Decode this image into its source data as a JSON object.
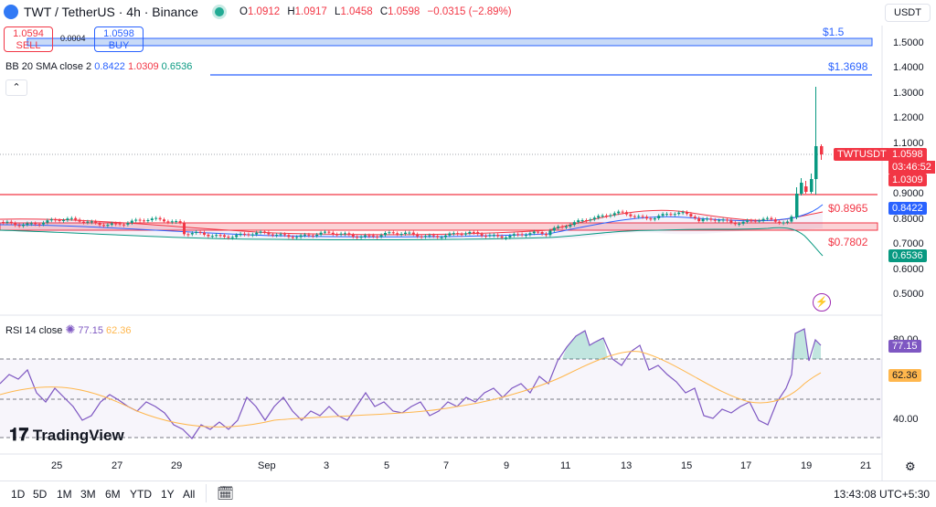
{
  "header": {
    "title": "TWT / TetherUS · 4h · Binance",
    "ohlc": [
      {
        "k": "O",
        "v": "1.0912"
      },
      {
        "k": "H",
        "v": "1.0917"
      },
      {
        "k": "L",
        "v": "1.0458"
      },
      {
        "k": "C",
        "v": "1.0598"
      }
    ],
    "change": "−0.0315 (−2.89%)",
    "currency": "USDT"
  },
  "trade": {
    "sell_price": "1.0594",
    "sell_label": "SELL",
    "buy_price": "1.0598",
    "buy_label": "BUY",
    "spread": "0.0004"
  },
  "bb": {
    "label": "BB 20 SMA close 2",
    "mid": "0.8422",
    "upper": "1.0309",
    "lower": "0.6536"
  },
  "rsi": {
    "label": "RSI 14 close",
    "value": "77.15",
    "ma": "62.36"
  },
  "price_axis": [
    "1.5000",
    "1.4000",
    "1.3000",
    "1.2000",
    "1.1000",
    "0.9000",
    "0.8000",
    "0.7000",
    "0.6000",
    "0.5000"
  ],
  "rsi_axis": [
    "80.00",
    "40.00"
  ],
  "tags": {
    "symbol": "TWTUSDT",
    "last": "1.0598",
    "countdown": "03:46:52",
    "bb_upper": "1.0309",
    "bb_mid": "0.8422",
    "bb_lower": "0.6536",
    "rsi": "77.15",
    "rsi_ma": "62.36"
  },
  "levels": [
    "$1.5",
    "$1.3698",
    "$0.8965",
    "$0.7802"
  ],
  "time_axis": [
    "25",
    "27",
    "29",
    "Sep",
    "3",
    "5",
    "7",
    "9",
    "11",
    "13",
    "15",
    "17",
    "19",
    "21"
  ],
  "ranges": [
    "1D",
    "5D",
    "1M",
    "3M",
    "6M",
    "YTD",
    "1Y",
    "All"
  ],
  "clock": "13:43:08 UTC+5:30",
  "brand": "TradingView",
  "colors": {
    "up": "#089981",
    "down": "#f23645",
    "bb_mid": "#2962ff",
    "rsi": "#7e57c2",
    "rsi_ma": "#ffb74d"
  }
}
